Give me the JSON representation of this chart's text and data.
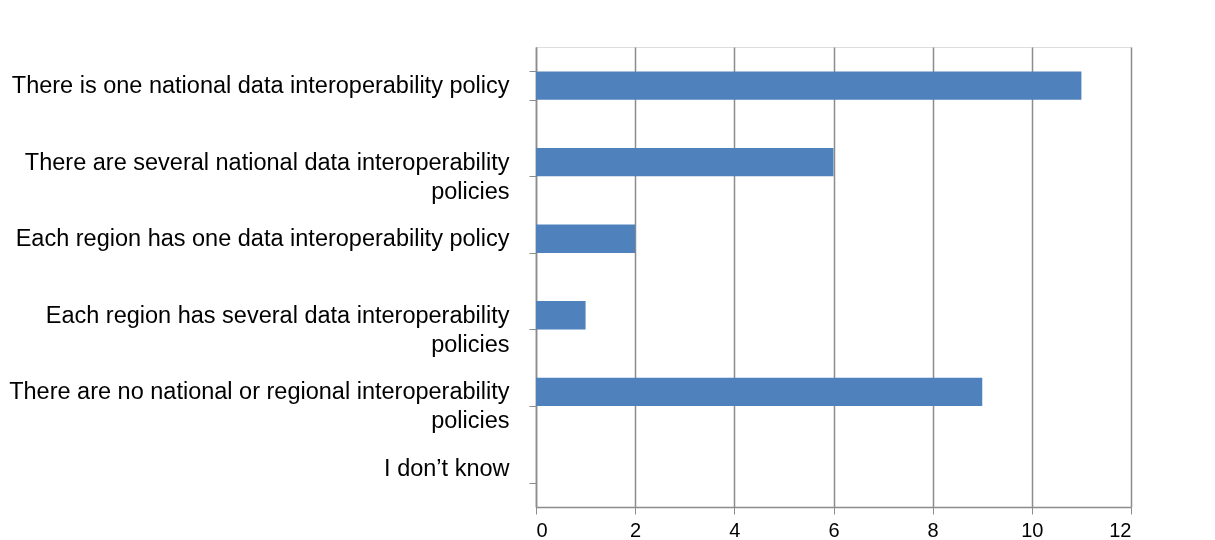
{
  "chart_data": {
    "type": "bar",
    "orientation": "horizontal",
    "categories": [
      "There is one national data interoperability policy",
      "There are several national data interoperability policies",
      "Each region has one data interoperability policy",
      "Each region has several data interoperability policies",
      "There are no national or regional interoperability policies",
      "I don’t know"
    ],
    "values": [
      11,
      6,
      2,
      1,
      9,
      0
    ],
    "color": "#4f81bd",
    "xlim": [
      0,
      12
    ],
    "xticks": [
      0,
      2,
      4,
      6,
      8,
      10,
      12
    ],
    "grid": "x"
  }
}
